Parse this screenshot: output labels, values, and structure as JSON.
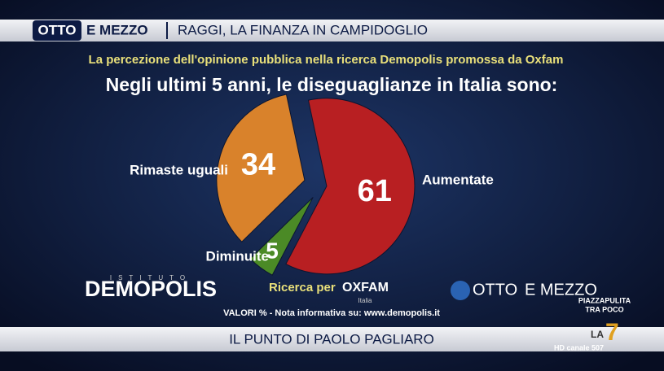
{
  "header": {
    "show_left": "OTTO",
    "show_right": "E MEZZO",
    "headline": "RAGGI, LA FINANZA IN CAMPIDOGLIO"
  },
  "chart_data": {
    "type": "pie",
    "subtitle": "La percezione dell'opinione pubblica nella ricerca Demopolis promossa da Oxfam",
    "title": "Negli ultimi 5 anni, le diseguaglianze in Italia sono:",
    "categories": [
      "Aumentate",
      "Diminuite",
      "Rimaste uguali"
    ],
    "values": [
      61,
      5,
      34
    ],
    "colors": [
      "#b81f22",
      "#4b8a26",
      "#d9822b"
    ]
  },
  "logos": {
    "institute_small": "ISTITUTO",
    "institute": "DEMOPOLIS",
    "research_for": "Ricerca per",
    "oxfam": "OXFAM",
    "oxfam_country": "Italia",
    "show_left": "OTTO",
    "show_right": "E MEZZO",
    "next_show": "PIAZZAPULITA",
    "next_time": "TRA POCO"
  },
  "note": "VALORI % - Nota informativa su: www.demopolis.it",
  "footer": {
    "segment": "IL PUNTO DI PAOLO PAGLIARO",
    "channel": "LA",
    "channel_num": "7",
    "hd": "HD canale 507"
  }
}
